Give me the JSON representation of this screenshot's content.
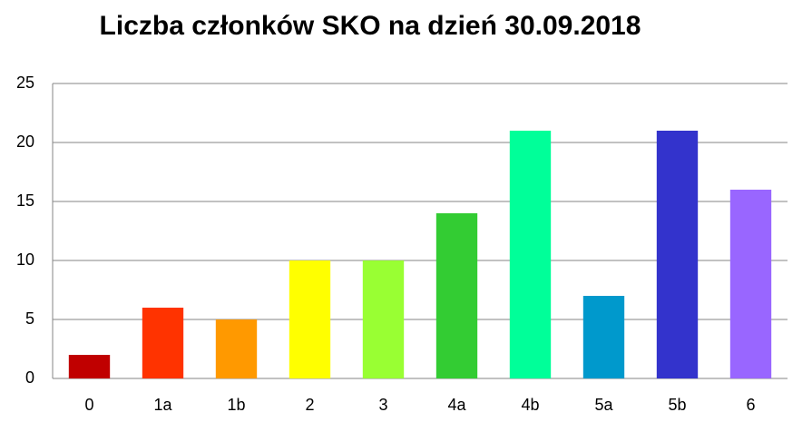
{
  "chart_data": {
    "type": "bar",
    "title": "Liczba członków SKO na dzień 30.09.2018",
    "categories": [
      "0",
      "1a",
      "1b",
      "2",
      "3",
      "4a",
      "4b",
      "5a",
      "5b",
      "6"
    ],
    "values": [
      2,
      6,
      5,
      10,
      10,
      14,
      21,
      7,
      21,
      16
    ],
    "colors": [
      "#c00000",
      "#ff3300",
      "#ff9900",
      "#ffff00",
      "#99ff33",
      "#33cc33",
      "#00ff99",
      "#0099cc",
      "#3333cc",
      "#9966ff"
    ],
    "ylim": [
      0,
      25
    ],
    "yticks": [
      0,
      5,
      10,
      15,
      20,
      25
    ],
    "grid": true
  }
}
